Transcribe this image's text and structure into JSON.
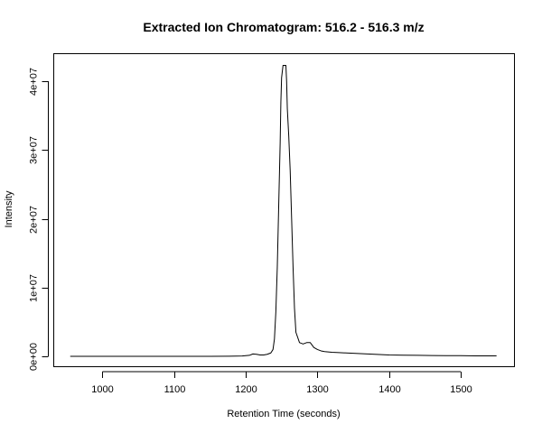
{
  "chart_data": {
    "type": "line",
    "title": "Extracted Ion Chromatogram: 516.2 - 516.3 m/z",
    "xlabel": "Retention Time (seconds)",
    "ylabel": "Intensity",
    "xlim": [
      932,
      1575
    ],
    "ylim": [
      -1500000,
      44000000
    ],
    "x_ticks": [
      1000,
      1100,
      1200,
      1300,
      1400,
      1500
    ],
    "x_tick_labels": [
      "1000",
      "1100",
      "1200",
      "1300",
      "1400",
      "1500"
    ],
    "y_ticks": [
      0,
      10000000,
      20000000,
      30000000,
      40000000
    ],
    "y_tick_labels": [
      "0e+00",
      "1e+07",
      "2e+07",
      "3e+07",
      "4e+07"
    ],
    "grid": false,
    "legend": false,
    "series": [
      {
        "color": "#000000",
        "x": [
          955,
          1000,
          1050,
          1100,
          1150,
          1195,
          1205,
          1210,
          1215,
          1220,
          1225,
          1230,
          1235,
          1238,
          1240,
          1242,
          1244,
          1246,
          1248,
          1249,
          1250,
          1252,
          1254,
          1256,
          1257,
          1258,
          1260,
          1262,
          1264,
          1266,
          1268,
          1270,
          1275,
          1280,
          1285,
          1290,
          1295,
          1300,
          1305,
          1310,
          1320,
          1330,
          1340,
          1350,
          1360,
          1370,
          1380,
          1390,
          1400,
          1420,
          1440,
          1460,
          1480,
          1500,
          1520,
          1540,
          1550
        ],
        "y": [
          0,
          0,
          0,
          0,
          0,
          50000,
          150000,
          350000,
          300000,
          200000,
          200000,
          300000,
          500000,
          1000000,
          2500000,
          6500000,
          13000000,
          22000000,
          31000000,
          37000000,
          40500000,
          42300000,
          42300000,
          42300000,
          40000000,
          36000000,
          32000000,
          27000000,
          20000000,
          13000000,
          7000000,
          3500000,
          2000000,
          1800000,
          2000000,
          2000000,
          1300000,
          1000000,
          800000,
          700000,
          600000,
          550000,
          500000,
          450000,
          400000,
          350000,
          300000,
          250000,
          200000,
          180000,
          150000,
          120000,
          100000,
          100000,
          80000,
          80000,
          70000
        ]
      }
    ]
  }
}
